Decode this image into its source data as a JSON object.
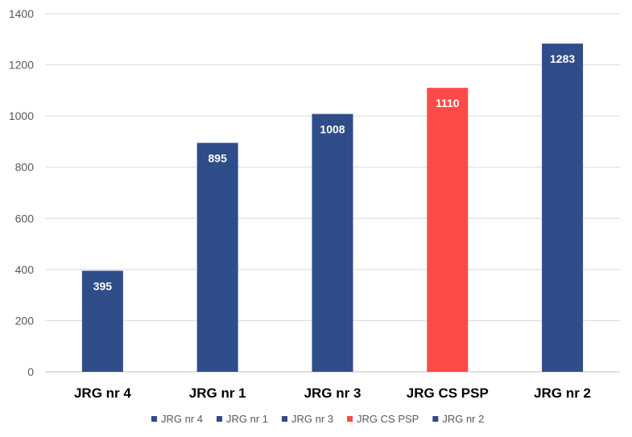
{
  "chart_data": {
    "type": "bar",
    "title": "",
    "xlabel": "",
    "ylabel": "",
    "ylim": [
      0,
      1400
    ],
    "yticks": [
      0,
      200,
      400,
      600,
      800,
      1000,
      1200,
      1400
    ],
    "grid": true,
    "legend_position": "bottom",
    "categories": [
      "JRG nr 4",
      "JRG nr 1",
      "JRG nr 3",
      "JRG CS PSP",
      "JRG nr 2"
    ],
    "values": [
      395,
      895,
      1008,
      1110,
      1283
    ],
    "data_labels": [
      "395",
      "895",
      "1008",
      "1110",
      "1283"
    ],
    "colors": [
      "#2E4D8A",
      "#2E4D8A",
      "#2E4D8A",
      "#FF4A4A",
      "#2E4D8A"
    ],
    "gridline_color": "#D9D9D9",
    "axis_color": "#BFBFBF"
  }
}
